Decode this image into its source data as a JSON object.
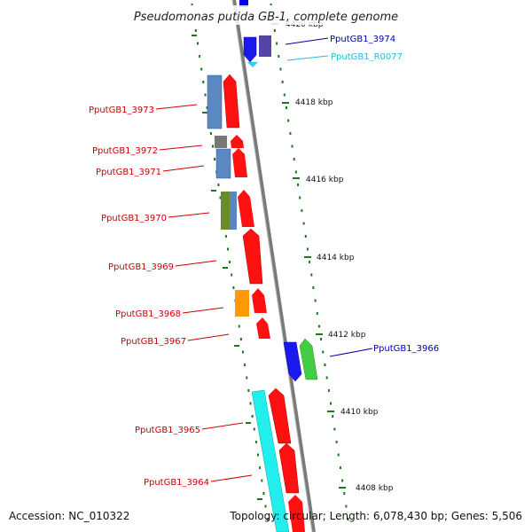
{
  "title": "Pseudomonas putida GB-1, complete genome",
  "footer": {
    "accession": "Accession: NC_010322",
    "topology": "Topology: circular; Length: 6,078,430 bp; Genes: 5,506"
  },
  "colors": {
    "forward_cds": "#ff0000",
    "reverse_cds": "#0000ff",
    "rna": "#33ccff",
    "backbone": "#888888",
    "tick": "#1a7a1a",
    "label_red": "#cc0000",
    "label_blue": "#0000aa",
    "label_cyan": "#22bbdd"
  },
  "scale_labels": [
    "4420 kbp",
    "4418 kbp",
    "4416 kbp",
    "4414 kbp",
    "4412 kbp",
    "4410 kbp",
    "4408 kbp"
  ],
  "gene_labels": [
    {
      "text": "PputGB1_3974",
      "side": "right",
      "color": "blue"
    },
    {
      "text": "PputGB1_R0077",
      "side": "right",
      "color": "cyan"
    },
    {
      "text": "PputGB1_3973",
      "side": "left",
      "color": "red"
    },
    {
      "text": "PputGB1_3972",
      "side": "left",
      "color": "red"
    },
    {
      "text": "PputGB1_3971",
      "side": "left",
      "color": "red"
    },
    {
      "text": "PputGB1_3970",
      "side": "left",
      "color": "red"
    },
    {
      "text": "PputGB1_3969",
      "side": "left",
      "color": "red"
    },
    {
      "text": "PputGB1_3968",
      "side": "left",
      "color": "red"
    },
    {
      "text": "PputGB1_3967",
      "side": "left",
      "color": "red"
    },
    {
      "text": "PputGB1_3966",
      "side": "right",
      "color": "blue"
    },
    {
      "text": "PputGB1_3965",
      "side": "left",
      "color": "red"
    },
    {
      "text": "PputGB1_3964",
      "side": "left",
      "color": "red"
    }
  ]
}
